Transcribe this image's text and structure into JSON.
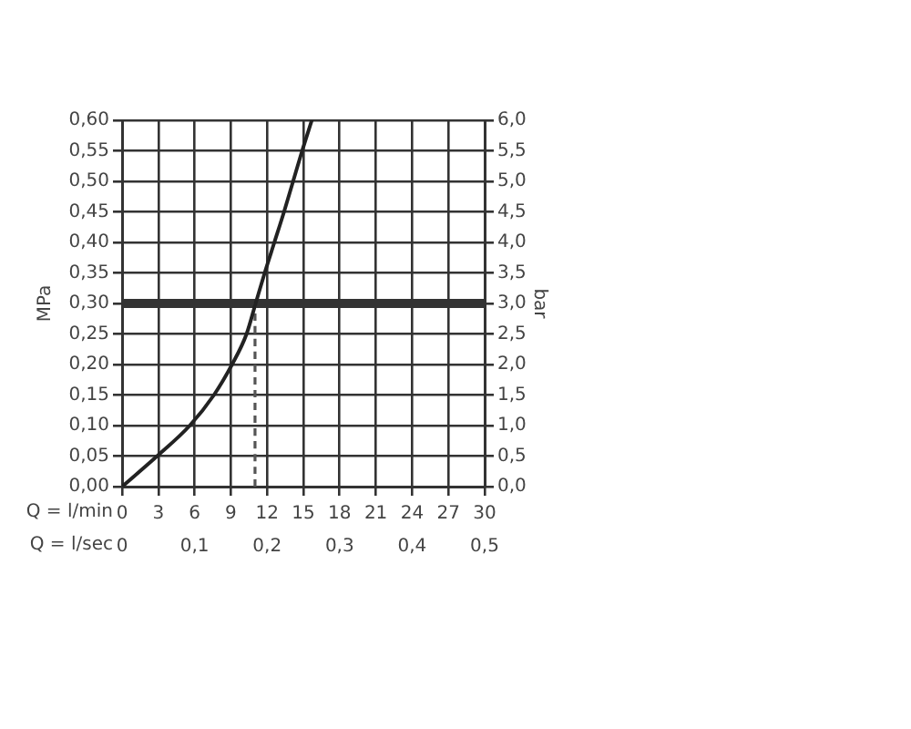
{
  "chart_data": {
    "type": "line",
    "xlabel": "Q = l/min",
    "x2label": "Q = l/sec",
    "ylabel": "MPa",
    "y2label": "bar",
    "xlim": [
      0,
      30
    ],
    "xticks": [
      0,
      3,
      6,
      9,
      12,
      15,
      18,
      21,
      24,
      27,
      30
    ],
    "x2lim": [
      0,
      0.5
    ],
    "x2ticks": [
      0,
      {
        "value": 0.1,
        "label": "0,1"
      },
      {
        "value": 0.2,
        "label": "0,2"
      },
      {
        "value": 0.3,
        "label": "0,3"
      },
      {
        "value": 0.4,
        "label": "0,4"
      },
      {
        "value": 0.5,
        "label": "0,5"
      }
    ],
    "ylim": [
      0,
      0.6
    ],
    "yticks": [
      {
        "value": 0,
        "label": "0,00"
      },
      {
        "value": 0.05,
        "label": "0,05"
      },
      {
        "value": 0.1,
        "label": "0,10"
      },
      {
        "value": 0.15,
        "label": "0,15"
      },
      {
        "value": 0.2,
        "label": "0,20"
      },
      {
        "value": 0.25,
        "label": "0,25"
      },
      {
        "value": 0.3,
        "label": "0,30"
      },
      {
        "value": 0.35,
        "label": "0,35"
      },
      {
        "value": 0.4,
        "label": "0,40"
      },
      {
        "value": 0.45,
        "label": "0,45"
      },
      {
        "value": 0.5,
        "label": "0,50"
      },
      {
        "value": 0.55,
        "label": "0,55"
      },
      {
        "value": 0.6,
        "label": "0,60"
      }
    ],
    "y2lim": [
      0,
      6
    ],
    "y2ticks": [
      {
        "value": 0,
        "label": "0,0"
      },
      {
        "value": 0.5,
        "label": "0,5"
      },
      {
        "value": 1,
        "label": "1,0"
      },
      {
        "value": 1.5,
        "label": "1,5"
      },
      {
        "value": 2,
        "label": "2,0"
      },
      {
        "value": 2.5,
        "label": "2,5"
      },
      {
        "value": 3,
        "label": "3,0"
      },
      {
        "value": 3.5,
        "label": "3,5"
      },
      {
        "value": 4,
        "label": "4,0"
      },
      {
        "value": 4.5,
        "label": "4,5"
      },
      {
        "value": 5,
        "label": "5,0"
      },
      {
        "value": 5.5,
        "label": "5,5"
      },
      {
        "value": 6,
        "label": "6,0"
      }
    ],
    "series": [
      {
        "color": "#222222",
        "x": [
          0,
          2.9,
          5.6,
          7.6,
          9.1,
          10.3,
          11.05,
          11.8,
          12.6,
          13.4,
          14.15,
          14.9,
          15.7
        ],
        "values": [
          0,
          0.05,
          0.1,
          0.15,
          0.2,
          0.25,
          0.3,
          0.35,
          0.4,
          0.45,
          0.5,
          0.55,
          0.6
        ]
      },
      {
        "color": "#555555",
        "line_style": "dashed",
        "x": [
          11,
          11
        ],
        "values": [
          0,
          0.3
        ]
      }
    ],
    "ref_lines": [
      {
        "axis": "y",
        "value": 0.3,
        "color": "#333333"
      }
    ],
    "grid": true,
    "marker": "none"
  }
}
